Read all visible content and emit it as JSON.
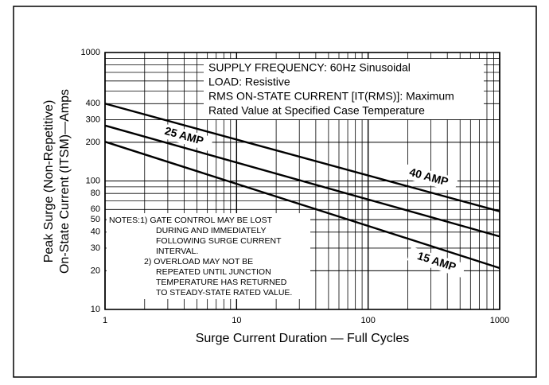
{
  "chart_data": {
    "type": "line",
    "x_label": "Surge Current Duration — Full Cycles",
    "y_label": [
      "Peak Surge (Non-Repetitive)",
      "On-State Current (ITSM)—Amps"
    ],
    "x_log": true,
    "y_log": true,
    "grid": true,
    "xlim": [
      1,
      1000
    ],
    "ylim": [
      10,
      1000
    ],
    "xticks": [
      1,
      10,
      100,
      1000
    ],
    "x_minor_ticks": [
      2,
      3,
      4,
      5,
      6,
      7,
      8,
      9,
      20,
      30,
      40,
      50,
      60,
      70,
      80,
      90,
      200,
      300,
      400,
      500,
      600,
      700,
      800,
      900
    ],
    "yticks": [
      10,
      20,
      30,
      40,
      50,
      60,
      80,
      100,
      200,
      300,
      400,
      1000
    ],
    "y_minor_ticks": [
      70,
      90,
      500,
      600,
      700,
      800,
      900
    ],
    "x": [
      1,
      1000
    ],
    "series": [
      {
        "name": "40 AMP",
        "color": "#000000",
        "values": [
          400,
          58
        ]
      },
      {
        "name": "25 AMP",
        "color": "#000000",
        "values": [
          270,
          37
        ]
      },
      {
        "name": "15 AMP",
        "color": "#000000",
        "values": [
          202,
          21
        ]
      }
    ],
    "info": [
      "SUPPLY FREQUENCY: 60Hz Sinusoidal",
      "LOAD: Resistive",
      "RMS ON-STATE CURRENT [IT(RMS)]: Maximum",
      "Rated Value at Specified Case Temperature"
    ],
    "notes": [
      "NOTES:1) GATE CONTROL MAY BE LOST",
      "DURING AND IMMEDIATELY",
      "FOLLOWING SURGE CURRENT",
      "INTERVAL.",
      "2) OVERLOAD MAY NOT BE",
      "REPEATED UNTIL JUNCTION",
      "TEMPERATURE HAS RETURNED",
      "TO STEADY-STATE RATED VALUE."
    ]
  }
}
